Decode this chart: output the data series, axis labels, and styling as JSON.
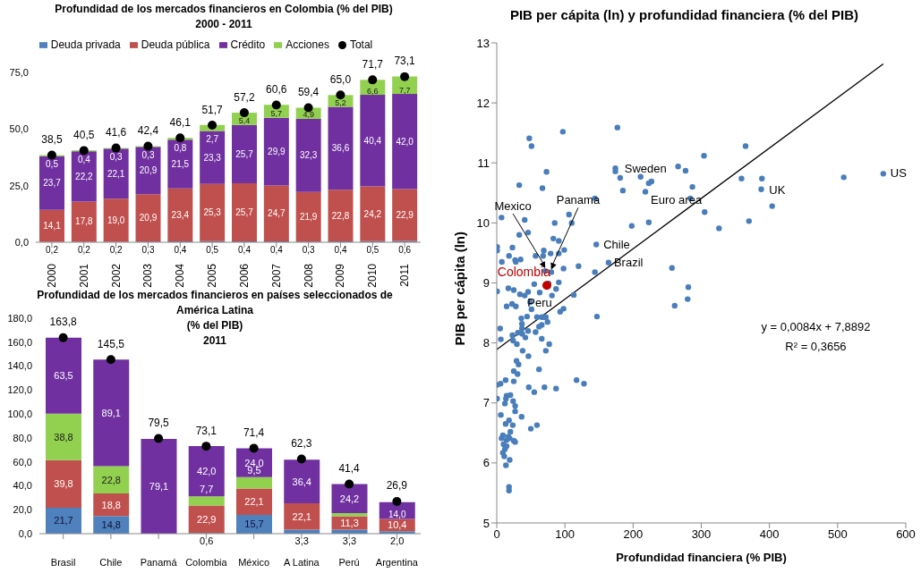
{
  "chart_data": [
    {
      "type": "bar",
      "title": "Profundidad de los mercados financieros en Colombia (% del PIB)",
      "subtitle": "2000 - 2011",
      "stacked": true,
      "legend": "top",
      "marker": "circle",
      "categories": [
        "2000",
        "2001",
        "2002",
        "2003",
        "2004",
        "2005",
        "2006",
        "2007",
        "2008",
        "2009",
        "2010",
        "2011"
      ],
      "ylim": [
        0,
        75
      ],
      "yticks": [
        {
          "value": 0,
          "label": "0,0"
        },
        {
          "value": 25,
          "label": "25,0"
        },
        {
          "value": 50,
          "label": "50,0"
        },
        {
          "value": 75,
          "label": "75,0"
        }
      ],
      "series": [
        {
          "name": "Deuda privada",
          "color": "#4f81bd",
          "values": [
            0.2,
            0.2,
            0.2,
            0.3,
            0.4,
            0.5,
            0.4,
            0.4,
            0.3,
            0.4,
            0.5,
            0.6
          ],
          "value_labels": [
            "0,2",
            "0,2",
            "0,2",
            "0,3",
            "0,4",
            "0,5",
            "0,4",
            "0,4",
            "0,3",
            "0,4",
            "0,5",
            "0,6"
          ]
        },
        {
          "name": "Deuda pública",
          "color": "#c0504d",
          "values": [
            14.1,
            17.8,
            19.0,
            20.9,
            23.4,
            25.3,
            25.7,
            24.7,
            21.9,
            22.8,
            24.2,
            22.9
          ],
          "value_labels": [
            "14,1",
            "17,8",
            "19,0",
            "20,9",
            "23,4",
            "25,3",
            "25,7",
            "24,7",
            "21,9",
            "22,8",
            "24,2",
            "22,9"
          ]
        },
        {
          "name": "Crédito",
          "color": "#7030a0",
          "values": [
            23.7,
            22.2,
            22.1,
            20.9,
            21.5,
            23.3,
            25.7,
            29.9,
            32.3,
            36.6,
            40.4,
            42.0
          ],
          "value_labels": [
            "23,7",
            "22,2",
            "22,1",
            "20,9",
            "21,5",
            "23,3",
            "25,7",
            "29,9",
            "32,3",
            "36,6",
            "40,4",
            "42,0"
          ]
        },
        {
          "name": "Acciones",
          "color": "#92d050",
          "values": [
            0.5,
            0.4,
            0.3,
            0.3,
            0.8,
            2.7,
            5.4,
            5.7,
            4.9,
            5.2,
            6.6,
            7.7
          ],
          "value_labels": [
            "0,5",
            "0,4",
            "0,3",
            "0,3",
            "0,8",
            "2,7",
            "5,4",
            "5,7",
            "4,9",
            "5,2",
            "6,6",
            "7,7"
          ]
        },
        {
          "name": "Total",
          "type": "scatter",
          "color": "#000000",
          "values": [
            38.5,
            40.5,
            41.6,
            42.4,
            46.1,
            51.7,
            57.2,
            60.6,
            59.4,
            65.0,
            71.7,
            73.1
          ],
          "value_labels": [
            "38,5",
            "40,5",
            "41,6",
            "42,4",
            "46,1",
            "51,7",
            "57,2",
            "60,6",
            "59,4",
            "65,0",
            "71,7",
            "73,1"
          ]
        }
      ]
    },
    {
      "type": "bar",
      "title": "Profundidad de los mercados financieros en países seleccionados de América Latina",
      "subtitle": "(% del PIB)\n2011",
      "stacked": true,
      "marker": "circle",
      "categories": [
        "Brasil",
        "Chile",
        "Panamá",
        "Colombia",
        "México",
        "A Latina",
        "Perú",
        "Argentina"
      ],
      "ylim": [
        0,
        180
      ],
      "yticks": [
        {
          "value": 0,
          "label": "0,0"
        },
        {
          "value": 20,
          "label": "20,0"
        },
        {
          "value": 40,
          "label": "40,0"
        },
        {
          "value": 60,
          "label": "60,0"
        },
        {
          "value": 80,
          "label": "80,0"
        },
        {
          "value": 100,
          "label": "100,0"
        },
        {
          "value": 120,
          "label": "120,0"
        },
        {
          "value": 140,
          "label": "140,0"
        },
        {
          "value": 160,
          "label": "160,0"
        },
        {
          "value": 180,
          "label": "180,0"
        }
      ],
      "series": [
        {
          "color": "#4f81bd",
          "values": [
            21.7,
            14.8,
            null,
            0.6,
            15.7,
            3.3,
            3.3,
            2.0
          ],
          "value_labels": [
            "21,7",
            "14,8",
            null,
            "0,6",
            "15,7",
            "3,3",
            "3,3",
            "2,0"
          ]
        },
        {
          "color": "#c0504d",
          "values": [
            39.8,
            18.8,
            null,
            22.9,
            22.1,
            22.1,
            11.3,
            10.4
          ],
          "value_labels": [
            "39,8",
            "18,8",
            null,
            "22,9",
            "22,1",
            "22,1",
            "11,3",
            "10,4"
          ]
        },
        {
          "color": "#92d050",
          "values": [
            38.8,
            22.8,
            null,
            7.7,
            9.5,
            null,
            2.6,
            null
          ],
          "value_labels": [
            "38,8",
            "22,8",
            null,
            "7,7",
            "9,5",
            null,
            null,
            null
          ]
        },
        {
          "color": "#7030a0",
          "values": [
            63.5,
            89.1,
            79.1,
            42.0,
            24.0,
            36.4,
            24.2,
            14.0
          ],
          "value_labels": [
            "63,5",
            "89,1",
            "79,1",
            "42,0",
            "24,0",
            "36,4",
            "24,2",
            "14,0"
          ]
        },
        {
          "type": "scatter",
          "color": "#000000",
          "values": [
            163.8,
            145.5,
            79.5,
            73.1,
            71.4,
            62.3,
            41.4,
            26.9
          ],
          "value_labels": [
            "163,8",
            "145,5",
            "79,5",
            "73,1",
            "71,4",
            "62,3",
            "41,4",
            "26,9"
          ]
        }
      ]
    },
    {
      "type": "scatter",
      "title": "PIB per cápita (ln) y profundidad financiera (% del PIB)",
      "xlabel": "Profundidad financiera (% PIB)",
      "ylabel": "PIB per cápita (ln)",
      "marker": "circle",
      "xlim": [
        0,
        600
      ],
      "xticks": [
        0,
        100,
        200,
        300,
        400,
        500,
        600
      ],
      "ylim": [
        5,
        13
      ],
      "yticks": [
        5,
        6,
        7,
        8,
        9,
        10,
        11,
        12,
        13
      ],
      "series": [
        {
          "color": "#4a7ebb",
          "x": [
            47.7,
            51,
            97,
            177,
            33,
            67,
            73,
            174,
            174,
            181,
            185,
            211,
            223,
            227,
            218,
            223,
            198,
            266,
            277,
            287,
            284,
            304,
            305,
            326,
            365,
            359,
            389,
            388,
            404,
            370,
            509,
            567,
            144,
            106,
            110,
            85,
            41,
            7,
            46,
            33,
            91,
            83,
            99,
            69,
            57,
            68,
            91,
            79,
            23,
            0.5,
            0.5,
            7.5,
            18,
            27,
            35,
            28,
            71,
            80,
            120,
            98,
            144,
            146,
            164,
            257,
            281,
            280,
            261,
            147,
            113,
            98,
            93,
            91,
            87,
            81,
            76,
            55,
            46,
            63,
            41,
            34,
            25,
            17,
            0.5,
            14.5,
            22.5,
            28,
            49,
            51,
            44.5,
            36,
            37,
            37,
            46,
            59,
            62,
            57,
            66,
            66,
            69,
            72,
            74.5,
            66,
            5,
            6,
            23,
            24,
            31,
            29.5,
            37.5,
            42,
            38,
            77,
            72,
            46.5,
            29,
            32,
            62,
            25,
            30.5,
            25,
            13,
            0.5,
            5.5,
            117,
            128,
            87,
            70,
            47,
            55,
            0.5,
            14.5,
            13.5,
            12,
            20,
            24,
            27,
            27,
            6,
            36.5,
            13,
            18,
            23.5,
            20,
            9,
            7,
            17,
            19,
            14.5,
            25,
            27,
            10,
            14.5,
            12,
            9,
            11,
            19,
            13.5,
            18,
            18,
            59,
            50
          ],
          "values": [
            11.41,
            11.28,
            11.52,
            11.59,
            10.63,
            10.58,
            10.85,
            10.91,
            10.86,
            10.75,
            10.54,
            10.77,
            10.66,
            10.69,
            10.52,
            10.01,
            9.95,
            10.94,
            10.87,
            10.6,
            10.41,
            11.12,
            10.18,
            9.91,
            11.28,
            10.74,
            10.74,
            10.56,
            10.28,
            10.03,
            10.76,
            10.82,
            10.41,
            10.14,
            10.0,
            10.0,
            10.05,
            10.09,
            9.84,
            9.8,
            9.7,
            9.74,
            9.55,
            9.54,
            9.45,
            9.45,
            9.49,
            9.49,
            9.59,
            9.6,
            9.54,
            9.35,
            9.45,
            9.38,
            9.39,
            9.35,
            9.2,
            9.18,
            9.28,
            9.24,
            9.18,
            9.64,
            9.34,
            9.25,
            8.93,
            8.73,
            8.62,
            8.44,
            8.8,
            8.57,
            8.52,
            9.01,
            8.9,
            8.79,
            8.99,
            8.98,
            8.85,
            8.84,
            8.79,
            8.81,
            8.88,
            8.91,
            8.86,
            8.61,
            8.65,
            8.61,
            8.68,
            8.56,
            8.44,
            8.41,
            8.32,
            8.24,
            8.2,
            8.43,
            8.27,
            8.18,
            8.3,
            8.43,
            8.43,
            8.43,
            8.35,
            8.07,
            8.24,
            8.06,
            8.13,
            8.04,
            8.17,
            7.98,
            8.15,
            8.09,
            7.87,
            7.98,
            7.87,
            7.78,
            7.7,
            7.64,
            7.56,
            7.53,
            7.48,
            7.36,
            7.38,
            7.3,
            7.32,
            7.38,
            7.32,
            7.24,
            7.26,
            7.26,
            7.18,
            7.07,
            7.12,
            7.07,
            6.99,
            7.13,
            7.03,
            6.95,
            6.86,
            6.8,
            6.77,
            6.65,
            6.71,
            6.63,
            6.52,
            6.46,
            6.41,
            6.44,
            6.41,
            6.38,
            6.37,
            6.35,
            6.31,
            6.28,
            6.23,
            6.17,
            6.11,
            6.05,
            5.96,
            5.6,
            5.54,
            6.63,
            6.57
          ]
        },
        {
          "name": "Colombia",
          "color": "#c00000",
          "x": [
            73.5
          ],
          "values": [
            8.96
          ]
        },
        {
          "type": "line",
          "marker": "none",
          "color": "#000000",
          "x": [
            0,
            567
          ],
          "values": [
            7.89,
            12.65
          ]
        }
      ],
      "annotations": [
        {
          "text": "Sweden",
          "x": 177,
          "y": 10.9
        },
        {
          "text": "Euro area",
          "x": 218,
          "y": 10.52
        },
        {
          "text": "UK",
          "x": 389,
          "y": 10.56
        },
        {
          "text": "US",
          "x": 567,
          "y": 10.82
        },
        {
          "text": "Chile",
          "x": 146,
          "y": 9.64
        },
        {
          "text": "Brazil",
          "x": 164,
          "y": 9.34
        },
        {
          "text": "Mexico",
          "x": 71,
          "y": 9.2
        },
        {
          "text": "Panama",
          "x": 80,
          "y": 9.18
        },
        {
          "text": "Peru",
          "x": 63,
          "y": 8.84
        },
        "y = 0,0084x + 7,8892",
        "R² = 0,3656"
      ]
    }
  ]
}
